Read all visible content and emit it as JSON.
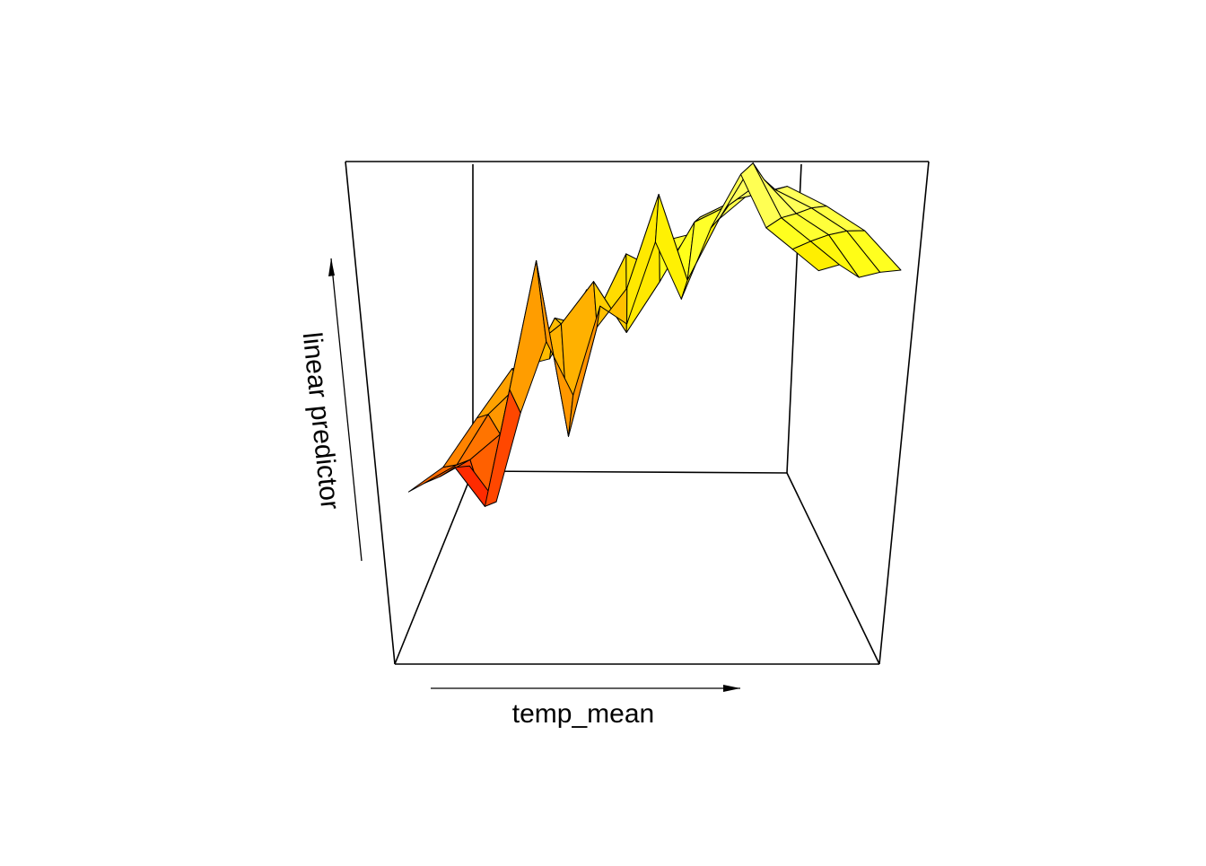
{
  "chart_data": {
    "type": "surface",
    "x_label": "temp_mean",
    "z_label": "linear predictor",
    "zlim": [
      0,
      1
    ],
    "z": [
      [
        0.15,
        0.05,
        0.3,
        0.5,
        0.35,
        0.6,
        0.55,
        0.78,
        0.62,
        0.82,
        0.97,
        0.82,
        0.76,
        0.7
      ],
      [
        0.22,
        0.12,
        0.42,
        0.75,
        0.3,
        0.58,
        0.68,
        0.92,
        0.7,
        0.86,
        1.0,
        0.86,
        0.8,
        0.74
      ],
      [
        0.26,
        0.3,
        0.36,
        0.56,
        0.62,
        0.72,
        0.6,
        0.72,
        0.86,
        0.9,
        0.96,
        0.88,
        0.83,
        0.73
      ],
      [
        0.3,
        0.34,
        0.45,
        0.52,
        0.66,
        0.64,
        0.8,
        0.76,
        0.88,
        0.92,
        0.94,
        0.9,
        0.85,
        0.76
      ],
      [
        0.33,
        0.38,
        0.48,
        0.58,
        0.6,
        0.74,
        0.7,
        0.84,
        0.86,
        0.93,
        0.95,
        0.91,
        0.86,
        0.78
      ]
    ]
  }
}
